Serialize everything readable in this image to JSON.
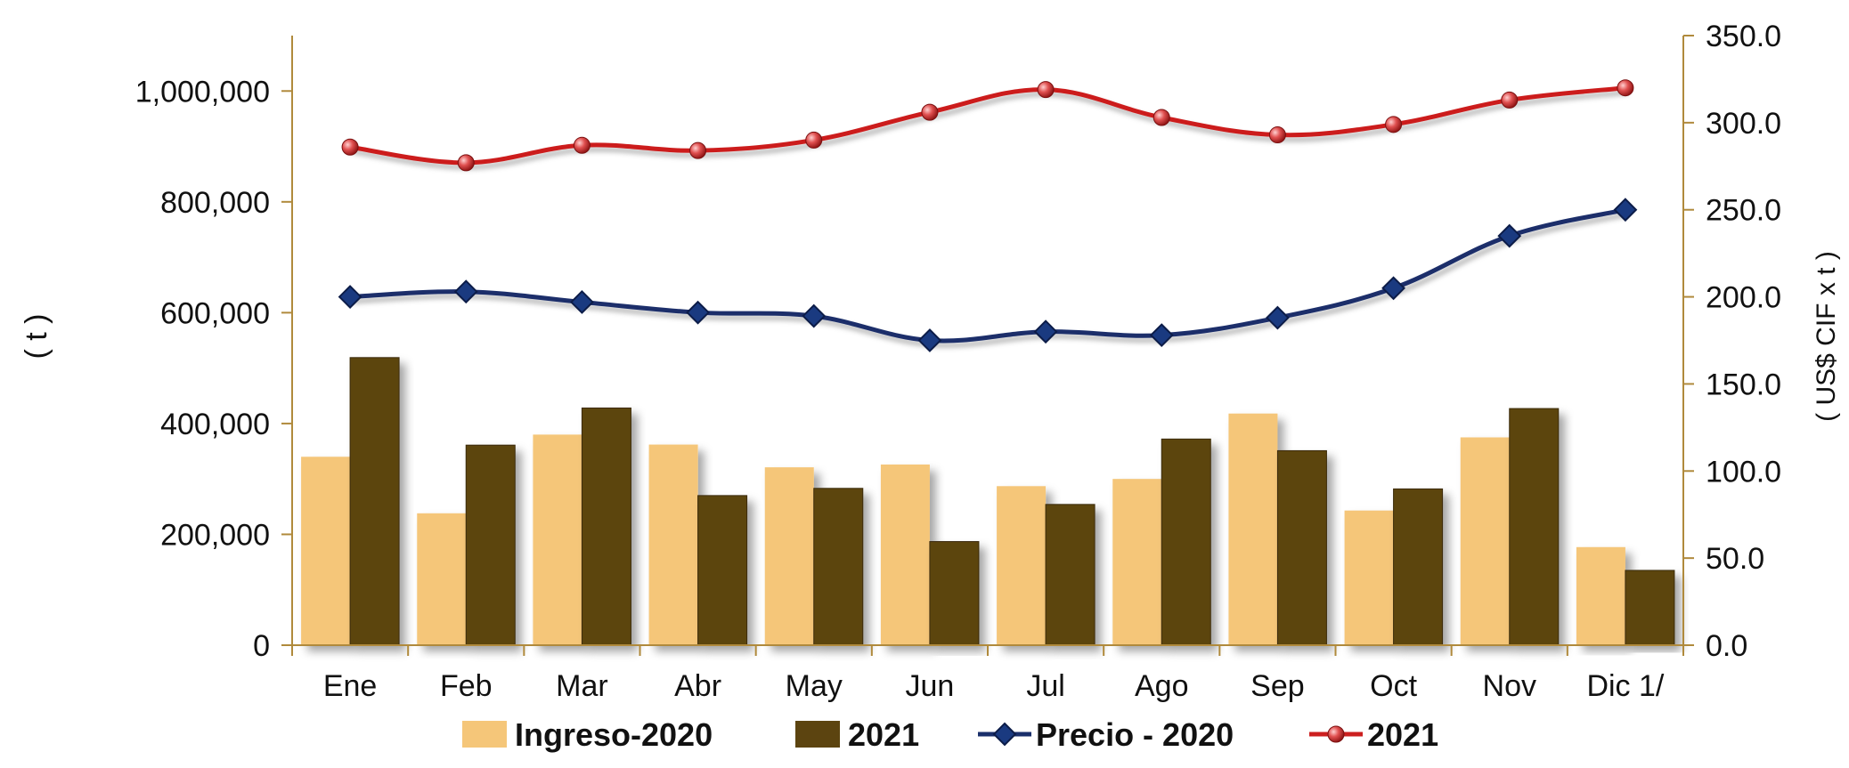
{
  "chart_data": {
    "type": "bar",
    "categories": [
      "Ene",
      "Feb",
      "Mar",
      "Abr",
      "May",
      "Jun",
      "Jul",
      "Ago",
      "Sep",
      "Oct",
      "Nov",
      "Dic 1/"
    ],
    "y_left": {
      "label": "( t )",
      "range": [
        0,
        1100000
      ],
      "ticks": [
        0,
        200000,
        400000,
        600000,
        800000,
        1000000
      ],
      "tick_labels": [
        "0",
        "200,000",
        "400,000",
        "600,000",
        "800,000",
        "1,000,000"
      ]
    },
    "y_right": {
      "label": "( US$ CIF x t )",
      "range": [
        0,
        350
      ],
      "ticks": [
        0,
        50,
        100,
        150,
        200,
        250,
        300,
        350
      ],
      "tick_labels": [
        "0.0",
        "50.0",
        "100.0",
        "150.0",
        "200.0",
        "250.0",
        "300.0",
        "350.0"
      ]
    },
    "bar_series": [
      {
        "name": "Ingreso-2020",
        "color": "#f5c679",
        "values": [
          340000,
          238000,
          380000,
          362000,
          321000,
          326000,
          287000,
          300000,
          418000,
          243000,
          375000,
          177000
        ]
      },
      {
        "name": "2021",
        "color": "#5c4410",
        "values": [
          519000,
          361000,
          428000,
          270000,
          283000,
          187000,
          254000,
          372000,
          351000,
          282000,
          427000,
          135000
        ]
      }
    ],
    "line_series": [
      {
        "name": "Precio - 2020",
        "color": "#1a2f6b",
        "marker": "diamond",
        "values": [
          200,
          203,
          197,
          191,
          189,
          175,
          180,
          178,
          188,
          205,
          235,
          250
        ]
      },
      {
        "name": "2021",
        "color": "#cc1f1f",
        "marker": "circle",
        "values": [
          286,
          277,
          287,
          284,
          290,
          306,
          319,
          303,
          293,
          299,
          313,
          320
        ]
      }
    ],
    "legend": {
      "position": "bottom",
      "items": [
        "Ingreso-2020",
        "2021",
        "Precio - 2020",
        "2021"
      ]
    },
    "grid": false
  }
}
